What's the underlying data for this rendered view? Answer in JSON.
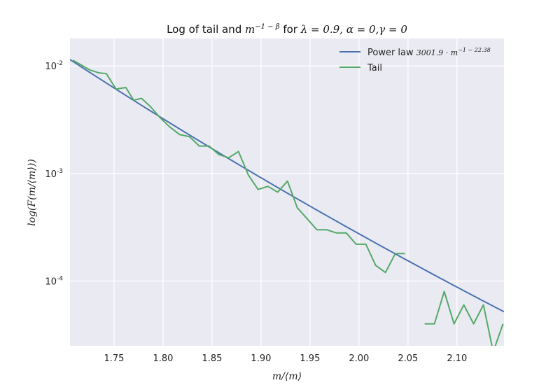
{
  "chart_data": {
    "type": "line",
    "title": {
      "prefix": "Log of tail and ",
      "math1": "m",
      "math1_sup": "−1 − β",
      "middle": " for ",
      "math2": "λ = 0.9, α = 0,γ = 0"
    },
    "xlabel": "m/⟨m⟩",
    "ylabel": "log(F(m/⟨m⟩))",
    "xlim": [
      1.705,
      2.148
    ],
    "ylim": [
      2.5e-05,
      0.018
    ],
    "yscale": "log",
    "grid": true,
    "legend_position": "top-right",
    "background_color": "#eaeaf2",
    "x_ticks": [
      {
        "value": 1.75,
        "label": "1.75"
      },
      {
        "value": 1.8,
        "label": "1.80"
      },
      {
        "value": 1.85,
        "label": "1.85"
      },
      {
        "value": 1.9,
        "label": "1.90"
      },
      {
        "value": 1.95,
        "label": "1.95"
      },
      {
        "value": 2.0,
        "label": "2.00"
      },
      {
        "value": 2.05,
        "label": "2.05"
      },
      {
        "value": 2.1,
        "label": "2.10"
      }
    ],
    "y_ticks": [
      {
        "value": 0.01,
        "base": "10",
        "exp": "-2"
      },
      {
        "value": 0.001,
        "base": "10",
        "exp": "-3"
      },
      {
        "value": 0.0001,
        "base": "10",
        "exp": "-4"
      }
    ],
    "series": [
      {
        "name": "Power law",
        "name_math": "3001.9 · m",
        "name_math_sup": "−1 − 22.38",
        "color": "#4c72b0",
        "kind": "power_law",
        "coef": 3001.9,
        "exponent": -23.38
      },
      {
        "name": "Tail",
        "color": "#55a868",
        "kind": "points",
        "segments": [
          [
            [
              1.708,
              0.0113
            ],
            [
              1.715,
              0.0104
            ],
            [
              1.725,
              0.0092
            ],
            [
              1.735,
              0.0086
            ],
            [
              1.742,
              0.0085
            ],
            [
              1.752,
              0.0061
            ],
            [
              1.762,
              0.0063
            ],
            [
              1.77,
              0.0048
            ],
            [
              1.778,
              0.005
            ],
            [
              1.787,
              0.0042
            ],
            [
              1.797,
              0.0033
            ],
            [
              1.807,
              0.0027
            ],
            [
              1.817,
              0.0023
            ],
            [
              1.827,
              0.0022
            ],
            [
              1.837,
              0.0018
            ],
            [
              1.847,
              0.0018
            ],
            [
              1.857,
              0.0015
            ],
            [
              1.867,
              0.0014
            ],
            [
              1.877,
              0.0016
            ],
            [
              1.887,
              0.00097
            ],
            [
              1.897,
              0.00071
            ],
            [
              1.907,
              0.00076
            ],
            [
              1.917,
              0.00067
            ],
            [
              1.927,
              0.00085
            ],
            [
              1.937,
              0.00048
            ],
            [
              1.947,
              0.00038
            ],
            [
              1.957,
              0.0003
            ],
            [
              1.967,
              0.0003
            ],
            [
              1.977,
              0.00028
            ],
            [
              1.987,
              0.00028
            ],
            [
              1.997,
              0.00022
            ],
            [
              2.007,
              0.00022
            ],
            [
              2.017,
              0.00014
            ],
            [
              2.027,
              0.00012
            ],
            [
              2.037,
              0.00018
            ],
            [
              2.047,
              0.00018
            ]
          ],
          [
            [
              2.067,
              4e-05
            ],
            [
              2.077,
              4e-05
            ],
            [
              2.087,
              8e-05
            ],
            [
              2.097,
              4e-05
            ],
            [
              2.107,
              6e-05
            ],
            [
              2.117,
              4e-05
            ],
            [
              2.127,
              6e-05
            ],
            [
              2.137,
              2.2e-05
            ],
            [
              2.147,
              4e-05
            ]
          ]
        ]
      }
    ]
  }
}
